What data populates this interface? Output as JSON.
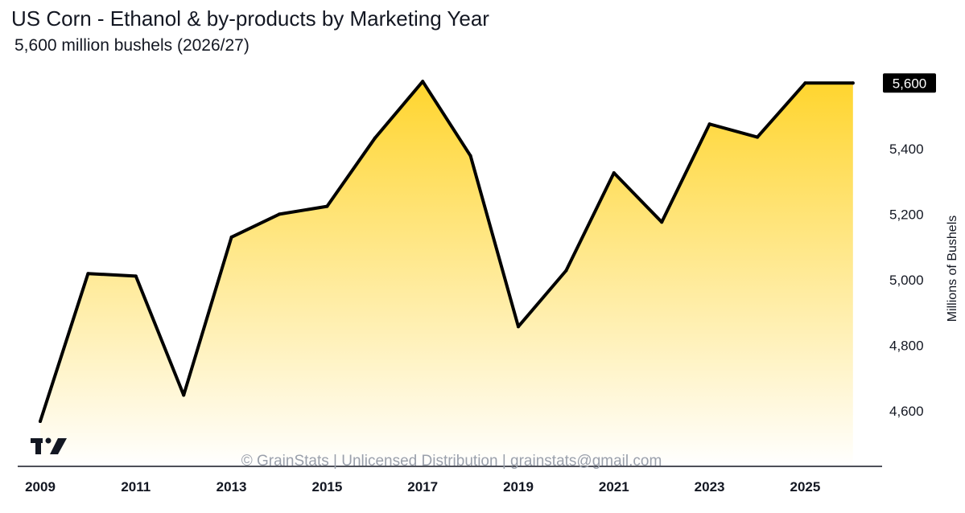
{
  "header": {
    "title": "US Corn - Ethanol & by-products by Marketing Year",
    "subtitle": "5,600 million bushels (2026/27)"
  },
  "watermark": "© GrainStats | Unlicensed Distribution | grainstats@gmail.com",
  "logo_icon": "tradingview-logo-icon",
  "colors": {
    "line": "#000000",
    "fill_top": "#FFD52E",
    "fill_bottom": "#FFFFFF",
    "badge": "#000000"
  },
  "chart_data": {
    "type": "area",
    "title": "US Corn - Ethanol & by-products by Marketing Year",
    "subtitle": "5,600 million bushels (2026/27)",
    "xlabel": "",
    "ylabel": "Millions of Bushels",
    "x": [
      2009,
      2010,
      2011,
      2012,
      2013,
      2014,
      2015,
      2016,
      2017,
      2018,
      2019,
      2020,
      2021,
      2022,
      2023,
      2024,
      2025,
      2026
    ],
    "series": [
      {
        "values": [
          4568,
          5019,
          5011,
          4648,
          5130,
          5200,
          5224,
          5432,
          5605,
          5378,
          4857,
          5028,
          5326,
          5176,
          5475,
          5435,
          5600,
          5600
        ]
      }
    ],
    "x_ticks": [
      "2009",
      "2011",
      "2013",
      "2015",
      "2017",
      "2019",
      "2021",
      "2023",
      "2025"
    ],
    "y_ticks": [
      "4,600",
      "4,800",
      "5,000",
      "5,200",
      "5,400"
    ],
    "ylim": [
      4470,
      5640
    ],
    "last_value_label": "5,600",
    "y_axis_position": "right",
    "grid": false,
    "legend": "none"
  }
}
